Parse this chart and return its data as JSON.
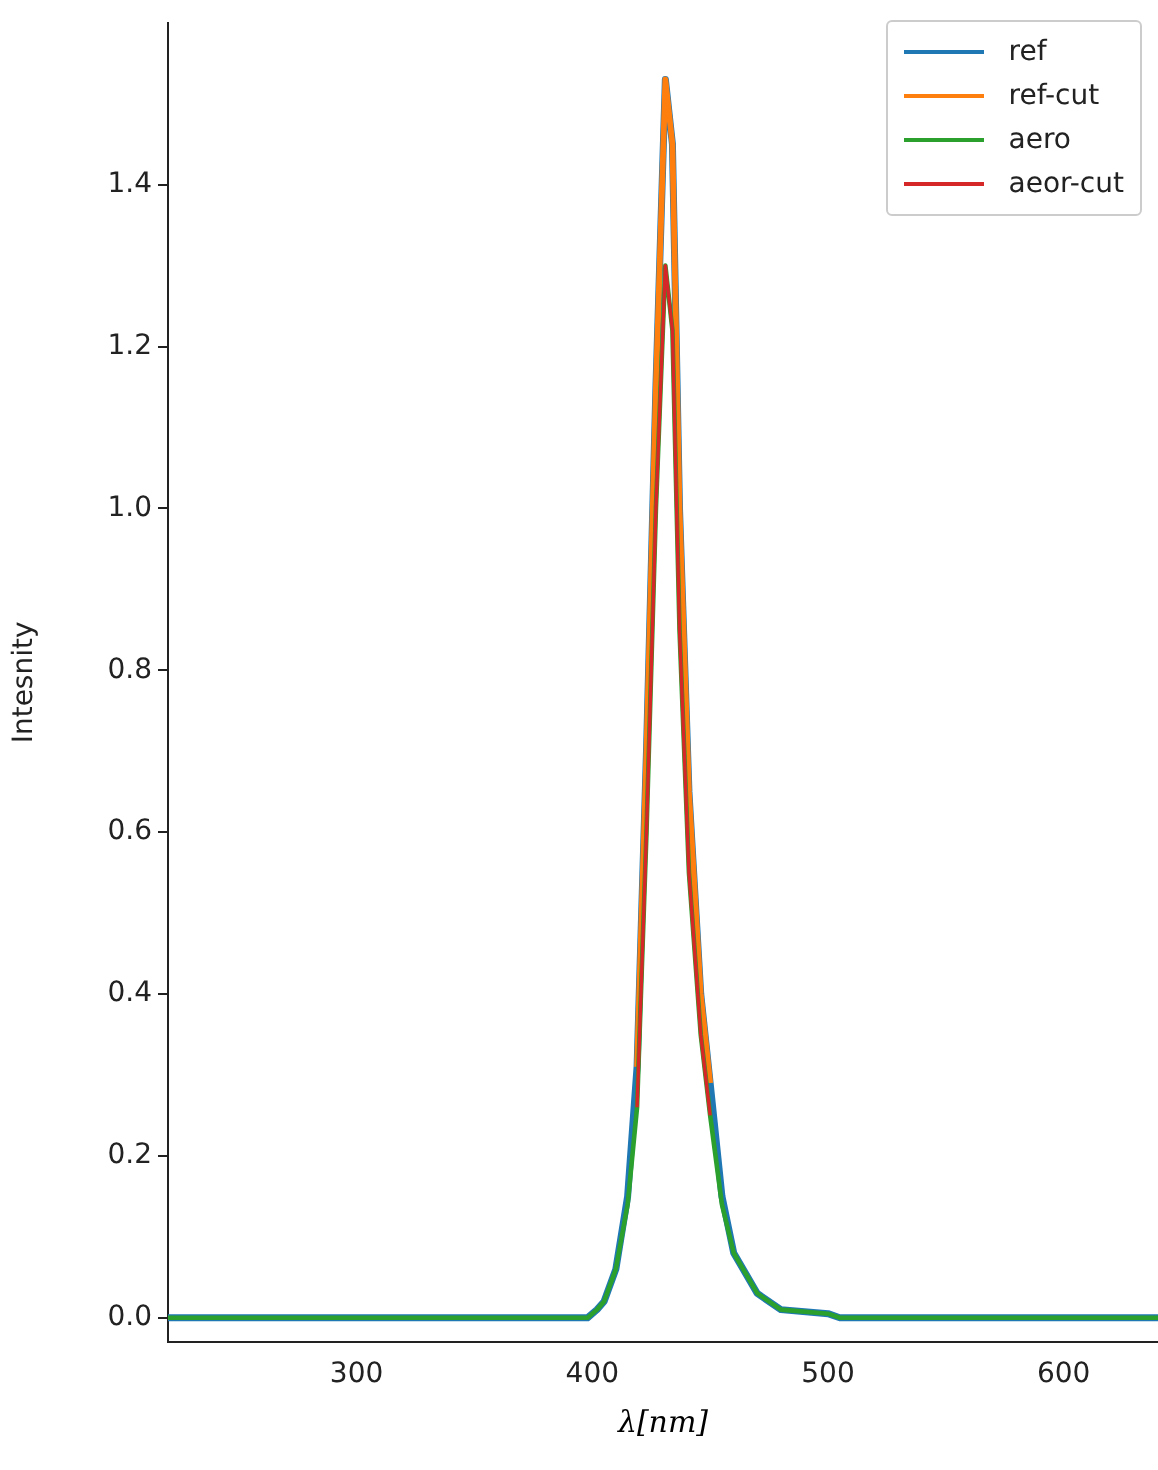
{
  "chart_data": {
    "type": "line",
    "xlabel": "λ[nm]",
    "ylabel": "Intesnity",
    "xlim": [
      220,
      640
    ],
    "xticks": [
      300,
      400,
      500,
      600
    ],
    "ylim": [
      -0.03,
      1.6
    ],
    "yticks": [
      {
        "value": 0,
        "label": "0.0"
      },
      {
        "value": 0.2,
        "label": "0.2"
      },
      {
        "value": 0.4,
        "label": "0.4"
      },
      {
        "value": 0.6,
        "label": "0.6"
      },
      {
        "value": 0.8,
        "label": "0.8"
      },
      {
        "value": 1,
        "label": "1.0"
      },
      {
        "value": 1.2,
        "label": "1.2"
      },
      {
        "value": 1.4,
        "label": "1.4"
      }
    ],
    "grid": false,
    "legend": "top right",
    "marker": "none",
    "line_style": "solid",
    "series": [
      {
        "name": "ref",
        "color": "#1f77b4",
        "x": [
          220,
          398,
          402,
          405,
          410,
          415,
          419,
          423,
          427,
          431,
          434,
          437,
          441,
          446,
          450,
          455,
          460,
          470,
          480,
          500,
          505,
          640
        ],
        "values": [
          0,
          0,
          0.01,
          0.02,
          0.06,
          0.15,
          0.31,
          0.7,
          1.15,
          1.53,
          1.45,
          1.0,
          0.65,
          0.4,
          0.29,
          0.15,
          0.08,
          0.03,
          0.01,
          0.005,
          0,
          0
        ]
      },
      {
        "name": "ref-cut",
        "color": "#ff7f0e",
        "x": [
          419,
          423,
          427,
          431,
          434,
          437,
          441,
          446,
          450
        ],
        "values": [
          0.31,
          0.7,
          1.15,
          1.53,
          1.45,
          1.0,
          0.65,
          0.4,
          0.29
        ]
      },
      {
        "name": "aero",
        "color": "#2ca02c",
        "x": [
          220,
          398,
          402,
          405,
          410,
          415,
          419,
          423,
          427,
          431,
          434,
          437,
          441,
          446,
          450,
          455,
          460,
          470,
          480,
          500,
          505,
          640
        ],
        "values": [
          0,
          0,
          0.01,
          0.02,
          0.06,
          0.14,
          0.26,
          0.6,
          1.0,
          1.3,
          1.22,
          0.85,
          0.55,
          0.35,
          0.25,
          0.14,
          0.08,
          0.03,
          0.01,
          0.005,
          0,
          0
        ]
      },
      {
        "name": "aeor-cut",
        "color": "#d62728",
        "x": [
          419,
          423,
          427,
          431,
          434,
          437,
          441,
          446,
          450
        ],
        "values": [
          0.26,
          0.6,
          1.0,
          1.3,
          1.22,
          0.85,
          0.55,
          0.35,
          0.25
        ]
      }
    ]
  }
}
